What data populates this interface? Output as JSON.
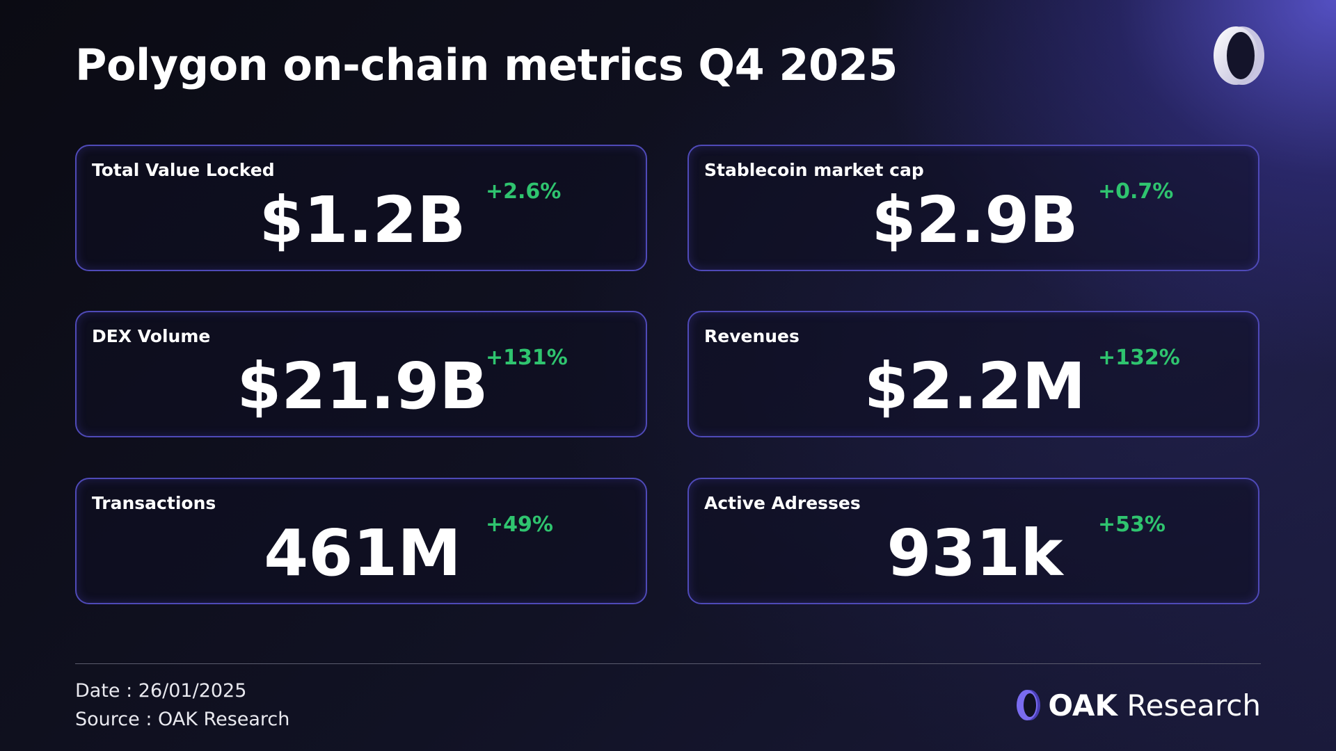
{
  "title": "Polygon on-chain metrics Q4 2025",
  "colors": {
    "positive": "#2fc46f",
    "card_border": "#4f4ab8",
    "accent": "#6b62e8"
  },
  "icons": {
    "corner_logo": "oak-ring-logo-icon",
    "brand_mark": "oak-ring-logo-icon"
  },
  "metrics": [
    {
      "label": "Total Value Locked",
      "value": "$1.2B",
      "change": "+2.6%"
    },
    {
      "label": "Stablecoin market cap",
      "value": "$2.9B",
      "change": "+0.7%"
    },
    {
      "label": "DEX Volume",
      "value": "$21.9B",
      "change": "+131%"
    },
    {
      "label": "Revenues",
      "value": "$2.2M",
      "change": "+132%"
    },
    {
      "label": "Transactions",
      "value": "461M",
      "change": "+49%"
    },
    {
      "label": "Active Adresses",
      "value": "931k",
      "change": "+53%"
    }
  ],
  "footer": {
    "date": "Date : 26/01/2025",
    "source": "Source : OAK Research",
    "brand_oak": "OAK",
    "brand_research": "Research"
  }
}
